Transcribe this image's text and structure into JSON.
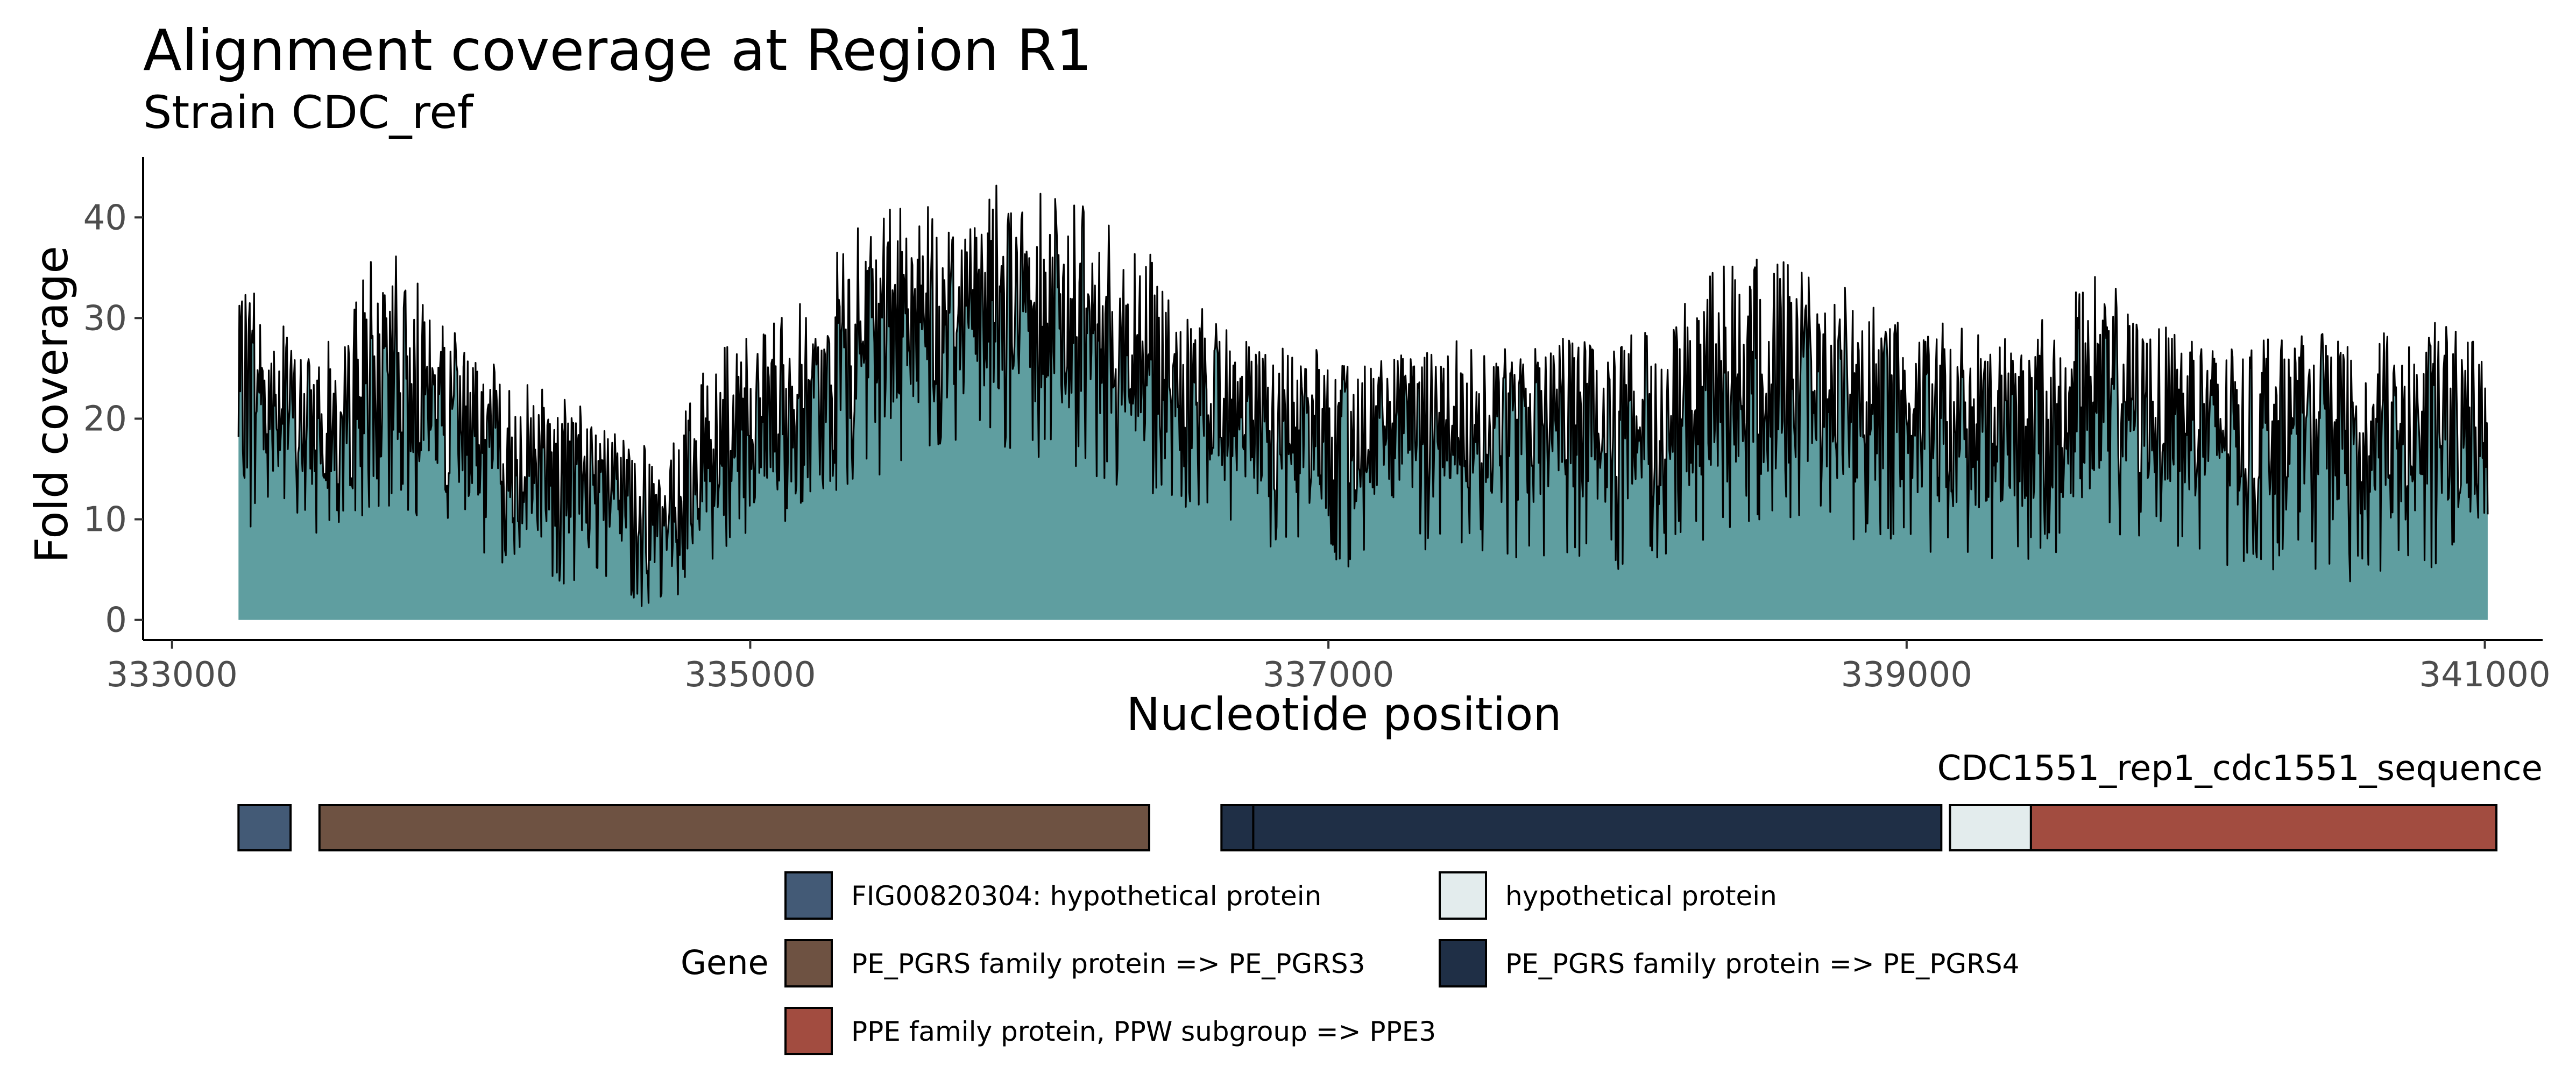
{
  "chart_data": [
    {
      "type": "area",
      "title": "Alignment coverage at Region R1",
      "subtitle": "Strain CDC_ref",
      "xlabel": "Nucleotide position",
      "ylabel": "Fold coverage",
      "xlim": [
        332900,
        341200
      ],
      "ylim": [
        -2,
        46
      ],
      "x_ticks": [
        333000,
        335000,
        337000,
        339000,
        341000
      ],
      "x_tick_labels": [
        "333000",
        "335000",
        "337000",
        "339000",
        "341000"
      ],
      "y_ticks": [
        0,
        10,
        20,
        30,
        40
      ],
      "y_tick_labels": [
        "0",
        "10",
        "20",
        "30",
        "40"
      ],
      "grid": false,
      "fill_color": "#5f9ea0",
      "line_color": "#000000",
      "series": [
        {
          "x": [
            333230,
            333300,
            333400,
            333500,
            333600,
            333700,
            333800,
            333900,
            334000,
            334100,
            334200,
            334300,
            334400,
            334500,
            334600,
            334700,
            334800,
            334900,
            335000,
            335100,
            335200,
            335300,
            335400,
            335500,
            335600,
            335700,
            335800,
            335900,
            336000,
            336100,
            336200,
            336300,
            336400,
            336500,
            336600,
            336700,
            336800,
            336900,
            337000,
            337100,
            337200,
            337300,
            337400,
            337500,
            337600,
            337700,
            337800,
            337900,
            338000,
            338100,
            338200,
            338300,
            338400,
            338500,
            338600,
            338700,
            338800,
            338900,
            339000,
            339100,
            339200,
            339300,
            339400,
            339500,
            339600,
            339700,
            339800,
            339900,
            340000,
            340100,
            340200,
            340300,
            340400,
            340500,
            340600,
            340700,
            340800,
            340900,
            341000,
            341010
          ],
          "values": [
            22,
            24,
            21,
            19,
            20,
            23,
            25,
            22,
            18,
            17,
            16,
            15,
            14,
            13,
            11,
            9,
            14,
            16,
            19,
            18,
            20,
            24,
            27,
            29,
            30,
            31,
            32,
            32,
            31,
            30,
            29,
            27,
            25,
            22,
            21,
            20,
            19,
            19,
            18,
            18,
            19,
            19,
            20,
            20,
            19,
            19,
            20,
            20,
            19,
            19,
            21,
            22,
            23,
            24,
            24,
            23,
            22,
            21,
            21,
            20,
            19,
            19,
            19,
            20,
            21,
            22,
            22,
            21,
            20,
            19,
            19,
            19,
            19,
            18,
            18,
            18,
            19,
            19,
            18,
            18
          ],
          "max_values": [
            35,
            33,
            30,
            26,
            30,
            37,
            36,
            31,
            28,
            26,
            25,
            24,
            22,
            20,
            18,
            16,
            24,
            27,
            30,
            31,
            33,
            37,
            40,
            41,
            42,
            44,
            43,
            44,
            43,
            42,
            41,
            39,
            37,
            33,
            30,
            29,
            28,
            27,
            27,
            26,
            27,
            27,
            28,
            28,
            27,
            27,
            28,
            29,
            28,
            29,
            31,
            34,
            36,
            38,
            36,
            34,
            33,
            31,
            31,
            30,
            29,
            28,
            29,
            31,
            33,
            36,
            32,
            30,
            29,
            28,
            28,
            28,
            29,
            28,
            28,
            29,
            31,
            30,
            28,
            27
          ],
          "min_values": [
            8,
            10,
            9,
            8,
            9,
            10,
            11,
            9,
            7,
            6,
            5,
            4,
            3,
            2,
            1,
            1,
            4,
            6,
            8,
            9,
            10,
            12,
            13,
            15,
            17,
            17,
            18,
            17,
            16,
            15,
            14,
            13,
            12,
            10,
            9,
            8,
            7,
            6,
            5,
            5,
            6,
            6,
            6,
            7,
            6,
            6,
            6,
            6,
            5,
            5,
            7,
            8,
            9,
            10,
            10,
            9,
            8,
            7,
            7,
            6,
            6,
            5,
            6,
            6,
            7,
            8,
            8,
            7,
            6,
            5,
            5,
            5,
            5,
            4,
            3,
            4,
            5,
            5,
            4,
            4
          ]
        }
      ]
    },
    {
      "type": "gene_track",
      "track_label": "CDC1551_rep1_cdc1551_sequence",
      "legend_title": "Gene",
      "legend_placement": "bottom",
      "genes": [
        {
          "start": 333230,
          "end": 333410,
          "legend_index": 0
        },
        {
          "start": 333510,
          "end": 336380,
          "legend_index": 2
        },
        {
          "start": 336630,
          "end": 336740,
          "legend_index": 3
        },
        {
          "start": 336740,
          "end": 339120,
          "legend_index": 3
        },
        {
          "start": 339150,
          "end": 339430,
          "legend_index": 1
        },
        {
          "start": 339430,
          "end": 341040,
          "legend_index": 4
        }
      ],
      "legend": [
        {
          "label": "FIG00820304: hypothetical protein",
          "color": "#435a76"
        },
        {
          "label": "hypothetical protein",
          "color": "#e3eced"
        },
        {
          "label": "PE_PGRS family protein => PE_PGRS3",
          "color": "#6e5242"
        },
        {
          "label": "PE_PGRS family protein => PE_PGRS4",
          "color": "#1f2f46"
        },
        {
          "label": "PPE family protein, PPW subgroup => PPE3",
          "color": "#a24c40"
        }
      ]
    }
  ]
}
